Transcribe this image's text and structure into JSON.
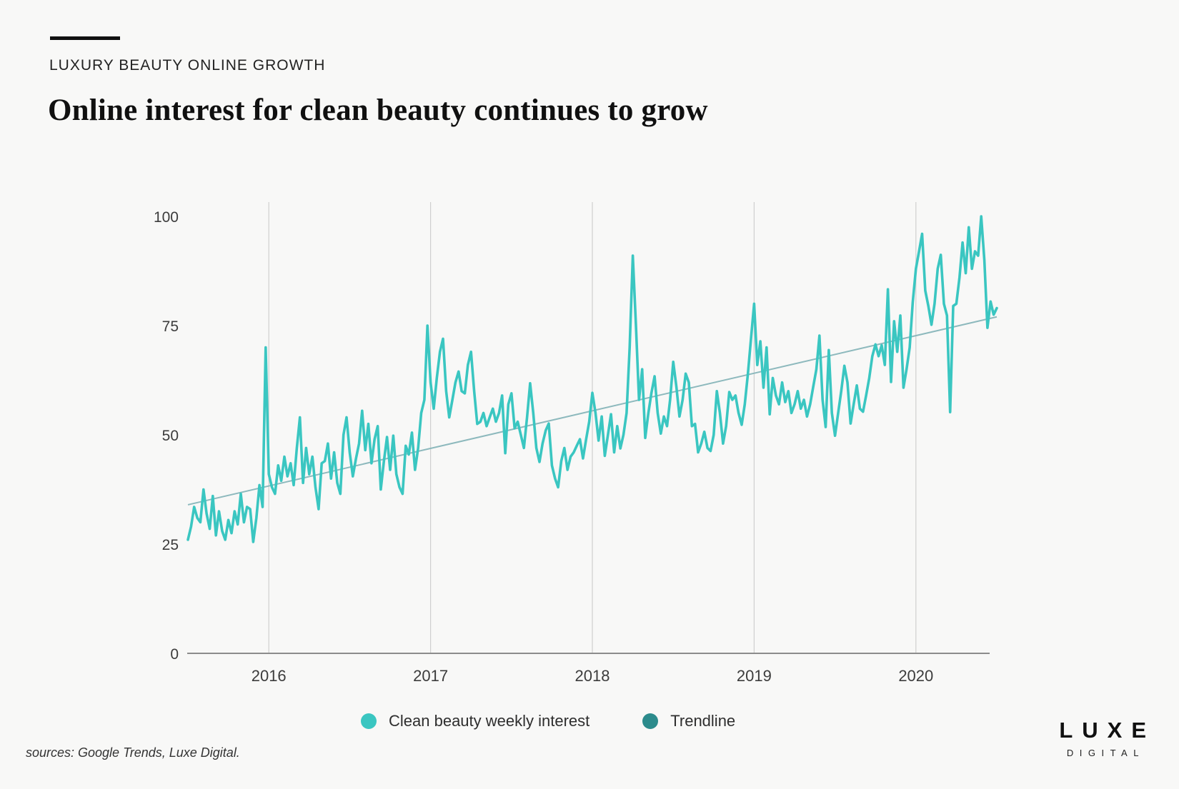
{
  "header": {
    "kicker": "LUXURY BEAUTY ONLINE GROWTH",
    "title": "Online interest for clean beauty continues to grow"
  },
  "legend": {
    "items": [
      {
        "label": "Clean beauty weekly interest",
        "color": "#3ac6c1"
      },
      {
        "label": "Trendline",
        "color": "#2c8b8c"
      }
    ]
  },
  "footer": {
    "sources": "sources: Google Trends, Luxe Digital.",
    "logo_line1": "LUXE",
    "logo_line2": "DIGITAL"
  },
  "colors": {
    "background": "#f8f8f7",
    "series_line": "#3ac6c1",
    "trendline_on_chart": "#8db9bd",
    "gridline": "#cfcfcf",
    "axis_line": "#8c8c8c",
    "tick_text": "#3c3c3c"
  },
  "chart_data": {
    "type": "line",
    "title": "Online interest for clean beauty continues to grow",
    "xlabel": "",
    "ylabel": "",
    "ylim": [
      0,
      100
    ],
    "grid": "vertical-year-gridlines",
    "legend_position": "bottom-center",
    "x_axis": {
      "tick_labels": [
        "2016",
        "2017",
        "2018",
        "2019",
        "2020"
      ],
      "first_tick_index": 26,
      "points_per_tick": 52,
      "note": "weekly points, mid-2015 through mid-2020"
    },
    "y_axis": {
      "ticks": [
        0,
        25,
        50,
        75,
        100
      ]
    },
    "series": [
      {
        "name": "Clean beauty weekly interest",
        "color": "#3ac6c1",
        "values": [
          26,
          29,
          33.5,
          31,
          30,
          37.5,
          32,
          28.5,
          36,
          27,
          32.5,
          28,
          26,
          30.5,
          27.5,
          32.5,
          29.5,
          36.5,
          30,
          33.5,
          33,
          25.5,
          31,
          38.5,
          33.5,
          70,
          41,
          38,
          36.5,
          43,
          39.5,
          45,
          40.5,
          43.5,
          38.5,
          47,
          54,
          39,
          47,
          41,
          45,
          38,
          33,
          43.5,
          44,
          48,
          40,
          46,
          39,
          36.5,
          50,
          54,
          46,
          40.5,
          44.5,
          48,
          55.5,
          46.5,
          52.5,
          43.5,
          49,
          52,
          37.5,
          44,
          49.5,
          42,
          49.8,
          41,
          38,
          36.5,
          47.5,
          45.5,
          50.5,
          42,
          47,
          55,
          58,
          75,
          62,
          56,
          63,
          69,
          72,
          60,
          54,
          58,
          62,
          64.5,
          60,
          59.5,
          66,
          69,
          60,
          52.5,
          53,
          55,
          52,
          54,
          56,
          53,
          55,
          59,
          45.8,
          57,
          59.5,
          51.5,
          53,
          50,
          47,
          54,
          61.8,
          55,
          47,
          43.8,
          48,
          51,
          52.6,
          43,
          40,
          38,
          44,
          47,
          42,
          45,
          46,
          47.5,
          49,
          44.6,
          49,
          53,
          59.6,
          55,
          48.7,
          54.2,
          45.2,
          50,
          54.7,
          46,
          52,
          46.9,
          50,
          55,
          70,
          91,
          75,
          58,
          65,
          49.3,
          55,
          59.6,
          63.4,
          55,
          50.3,
          54.2,
          52,
          58,
          66.7,
          61,
          54.2,
          58,
          64,
          62,
          52,
          52.5,
          46,
          48,
          50.7,
          47,
          46.3,
          50,
          60,
          55,
          48,
          52,
          59.8,
          58,
          59,
          55,
          52.3,
          57,
          64,
          72,
          80,
          66,
          71.4,
          60.8,
          70,
          54.7,
          63,
          59,
          57,
          62,
          57.5,
          60,
          55,
          57,
          60,
          56,
          58,
          54.2,
          57,
          61,
          65,
          72.7,
          58,
          51.8,
          69.4,
          55,
          49.8,
          55,
          60,
          65.8,
          62,
          52.6,
          57,
          61.3,
          56,
          55.3,
          59,
          63,
          68,
          70.7,
          68,
          70.5,
          66,
          83.3,
          62.1,
          76,
          69,
          77.3,
          60.8,
          65,
          70,
          80.4,
          88,
          92,
          96,
          83,
          79.5,
          75.2,
          80,
          88,
          91.2,
          80,
          77.3,
          55.2,
          79.5,
          80,
          86,
          94,
          87,
          97.5,
          88,
          92,
          91,
          100,
          90,
          74.5,
          80.5,
          77.5,
          79
        ]
      },
      {
        "name": "Trendline",
        "color": "#8db9bd",
        "endpoints": {
          "start_value": 34,
          "end_value": 77
        }
      }
    ]
  }
}
